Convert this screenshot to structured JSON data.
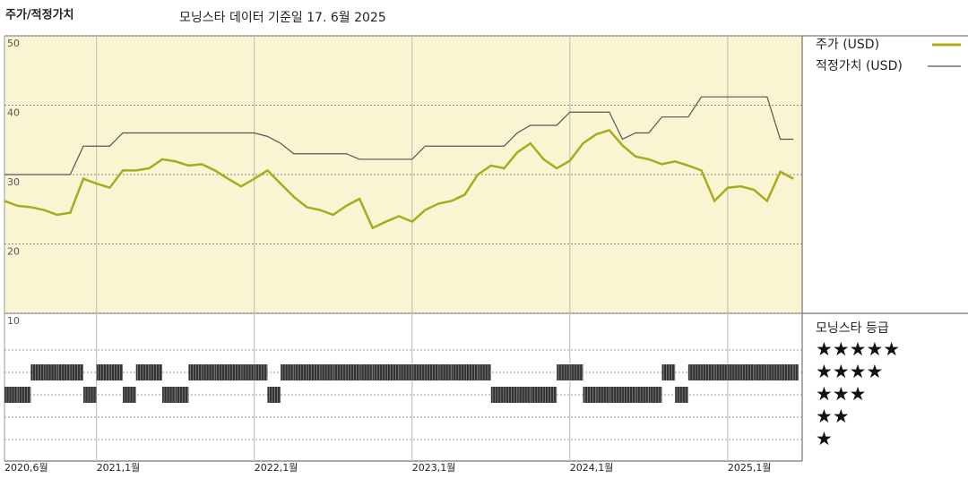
{
  "chart_data": {
    "type": "line",
    "title": "주가/적정가치",
    "subtitle": "모닝스타 데이터 기준일 17. 6월 2025",
    "x": [
      "2020-06",
      "2020-07",
      "2020-08",
      "2020-09",
      "2020-10",
      "2020-11",
      "2020-12",
      "2021-01",
      "2021-02",
      "2021-03",
      "2021-04",
      "2021-05",
      "2021-06",
      "2021-07",
      "2021-08",
      "2021-09",
      "2021-10",
      "2021-11",
      "2021-12",
      "2022-01",
      "2022-02",
      "2022-03",
      "2022-04",
      "2022-05",
      "2022-06",
      "2022-07",
      "2022-08",
      "2022-09",
      "2022-10",
      "2022-11",
      "2022-12",
      "2023-01",
      "2023-02",
      "2023-03",
      "2023-04",
      "2023-05",
      "2023-06",
      "2023-07",
      "2023-08",
      "2023-09",
      "2023-10",
      "2023-11",
      "2023-12",
      "2024-01",
      "2024-02",
      "2024-03",
      "2024-04",
      "2024-05",
      "2024-06",
      "2024-07",
      "2024-08",
      "2024-09",
      "2024-10",
      "2024-11",
      "2024-12",
      "2025-01",
      "2025-02",
      "2025-03",
      "2025-04",
      "2025-05",
      "2025-06"
    ],
    "series": [
      {
        "name": "주가 (USD)",
        "color": "#a8ac1c",
        "values": [
          26.2,
          25.5,
          25.3,
          24.9,
          24.2,
          24.5,
          29.4,
          28.7,
          28.1,
          30.6,
          30.6,
          30.9,
          32.2,
          31.9,
          31.3,
          31.5,
          30.6,
          29.4,
          28.3,
          29.4,
          30.6,
          28.7,
          26.8,
          25.3,
          24.9,
          24.2,
          25.5,
          26.5,
          22.3,
          23.2,
          24.0,
          23.2,
          24.9,
          25.8,
          26.2,
          27.1,
          30.0,
          31.3,
          30.9,
          33.2,
          34.5,
          32.2,
          30.9,
          32.0,
          34.5,
          35.8,
          36.4,
          34.2,
          32.6,
          32.2,
          31.5,
          31.9,
          31.3,
          30.6,
          26.2,
          28.1,
          28.3,
          27.8,
          26.2,
          30.4,
          29.4
        ]
      },
      {
        "name": "적정가치 (USD)",
        "color": "#555555",
        "values": [
          30.0,
          30.0,
          30.0,
          30.0,
          30.0,
          30.0,
          34.1,
          34.1,
          34.1,
          36.0,
          36.0,
          36.0,
          36.0,
          36.0,
          36.0,
          36.0,
          36.0,
          36.0,
          36.0,
          36.0,
          35.5,
          34.5,
          33.0,
          33.0,
          33.0,
          33.0,
          33.0,
          32.2,
          32.2,
          32.2,
          32.2,
          32.2,
          34.1,
          34.1,
          34.1,
          34.1,
          34.1,
          34.1,
          34.1,
          36.0,
          37.1,
          37.1,
          37.1,
          39.0,
          39.0,
          39.0,
          39.0,
          35.1,
          36.0,
          36.0,
          38.3,
          38.3,
          38.3,
          41.2,
          41.2,
          41.2,
          41.2,
          41.2,
          41.2,
          35.1,
          35.1
        ]
      }
    ],
    "ylim": [
      10,
      50
    ],
    "yticks": [
      50,
      40,
      30,
      20,
      10
    ],
    "xticks": [
      {
        "value": "2020-06",
        "label": "2020,6월"
      },
      {
        "value": "2021-01",
        "label": "2021,1월"
      },
      {
        "value": "2022-01",
        "label": "2022,1월"
      },
      {
        "value": "2023-01",
        "label": "2023,1월"
      },
      {
        "value": "2024-01",
        "label": "2024,1월"
      },
      {
        "value": "2025-01",
        "label": "2025,1월"
      }
    ],
    "grid": true,
    "background": "#f9f5d3",
    "rating": {
      "title": "모닝스타 등급",
      "color": "#333333",
      "levels": [
        {
          "value": 5,
          "label": "★★★★★"
        },
        {
          "value": 4,
          "label": "★★★★"
        },
        {
          "value": 3,
          "label": "★★★"
        },
        {
          "value": 2,
          "label": "★★"
        },
        {
          "value": 1,
          "label": "★"
        }
      ],
      "values": [
        3,
        3,
        4,
        4,
        4,
        4,
        3,
        4,
        4,
        3,
        4,
        4,
        3,
        3,
        4,
        4,
        4,
        4,
        4,
        4,
        3,
        4,
        4,
        4,
        4,
        4,
        4,
        4,
        4,
        4,
        4,
        4,
        4,
        4,
        4,
        4,
        4,
        3,
        3,
        3,
        3,
        3,
        4,
        4,
        3,
        3,
        3,
        3,
        3,
        3,
        4,
        3,
        4,
        4,
        4,
        4,
        4,
        4,
        4,
        4,
        4
      ]
    }
  }
}
